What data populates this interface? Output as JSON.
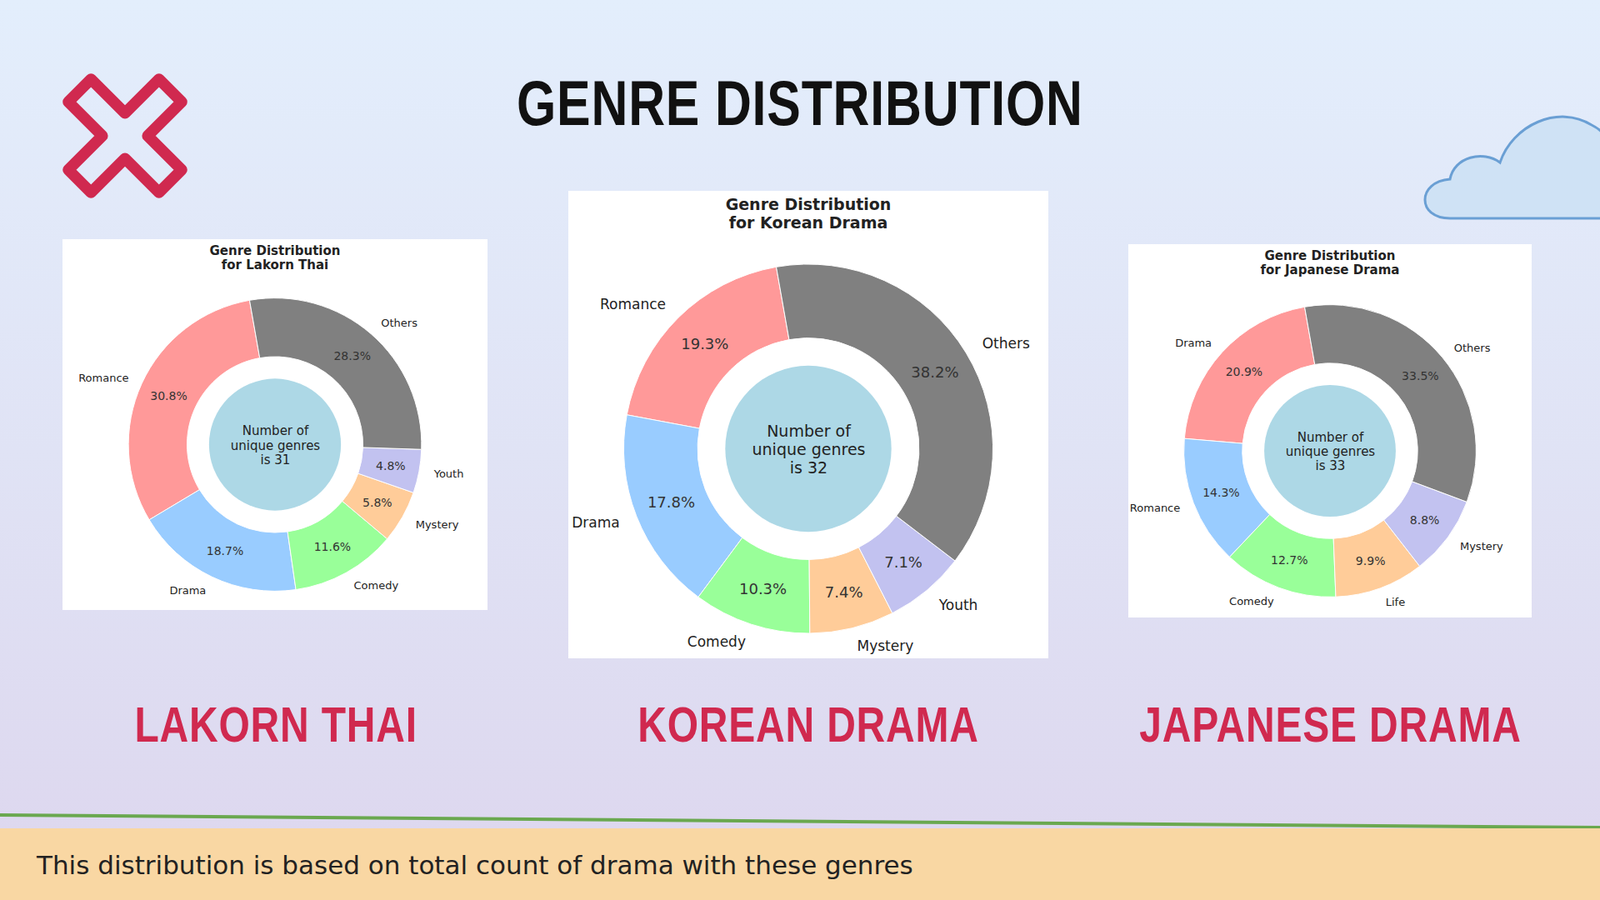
{
  "title": "GENRE DISTRIBUTION",
  "footer": "This distribution is based on total count of drama with these genres",
  "chart_data": [
    {
      "type": "pie",
      "title": "Genre Distribution\nfor Lakorn Thai",
      "caption": "LAKORN THAI",
      "categories": [
        "Romance",
        "Drama",
        "Comedy",
        "Mystery",
        "Youth",
        "Others"
      ],
      "values": [
        30.8,
        18.7,
        11.6,
        5.8,
        4.8,
        28.3
      ],
      "value_labels": [
        "30.8%",
        "18.7%",
        "11.6%",
        "5.8%",
        "4.8%",
        "28.3%"
      ],
      "colors": [
        "#ff9999",
        "#99ccff",
        "#99ff99",
        "#ffcc99",
        "#c2c2f0",
        "#808080"
      ],
      "data_labels": true,
      "annotations": [
        "Number of\nunique genres\nis 31"
      ]
    },
    {
      "type": "pie",
      "title": "Genre Distribution\nfor Korean Drama",
      "caption": "KOREAN DRAMA",
      "categories": [
        "Romance",
        "Drama",
        "Comedy",
        "Mystery",
        "Youth",
        "Others"
      ],
      "values": [
        19.3,
        17.8,
        10.3,
        7.4,
        7.1,
        38.2
      ],
      "value_labels": [
        "19.3%",
        "17.8%",
        "10.3%",
        "7.4%",
        "7.1%",
        "38.2%"
      ],
      "colors": [
        "#ff9999",
        "#99ccff",
        "#99ff99",
        "#ffcc99",
        "#c2c2f0",
        "#808080"
      ],
      "data_labels": true,
      "annotations": [
        "Number of\nunique genres\nis 32"
      ]
    },
    {
      "type": "pie",
      "title": "Genre Distribution\nfor Japanese Drama",
      "caption": "JAPANESE DRAMA",
      "categories": [
        "Drama",
        "Romance",
        "Comedy",
        "Life",
        "Mystery",
        "Others"
      ],
      "values": [
        20.9,
        14.3,
        12.7,
        9.9,
        8.8,
        33.5
      ],
      "value_labels": [
        "20.9%",
        "14.3%",
        "12.7%",
        "9.9%",
        "8.8%",
        "33.5%"
      ],
      "colors": [
        "#ff9999",
        "#99ccff",
        "#99ff99",
        "#ffcc99",
        "#c2c2f0",
        "#808080"
      ],
      "data_labels": true,
      "annotations": [
        "Number of\nunique genres\nis 33"
      ]
    }
  ]
}
